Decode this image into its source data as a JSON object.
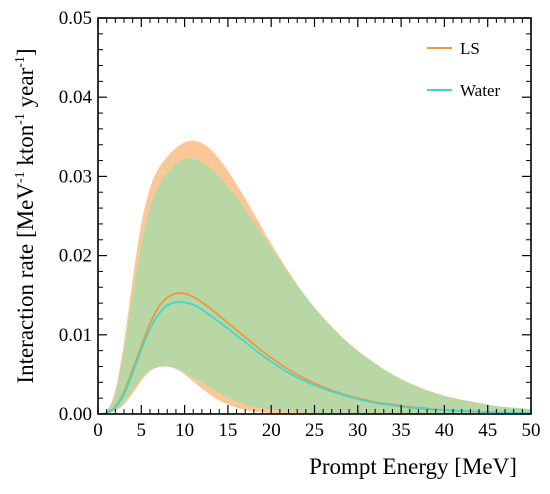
{
  "chart_data": {
    "type": "area",
    "title": "",
    "xlabel": "Prompt Energy [MeV]",
    "ylabel": {
      "prefix": "Interaction rate [MeV",
      "sup1": "-1",
      "mid": " kton",
      "sup2": "-1",
      "suffix": " year",
      "sup3": "-1",
      "close": "]"
    },
    "xlim": [
      0,
      50
    ],
    "ylim": [
      0,
      0.05
    ],
    "x_ticks": [
      0,
      5,
      10,
      15,
      20,
      25,
      30,
      35,
      40,
      45,
      50
    ],
    "x_tick_labels": [
      "0",
      "5",
      "10",
      "15",
      "20",
      "25",
      "30",
      "35",
      "40",
      "45",
      "50"
    ],
    "y_ticks": [
      0,
      0.01,
      0.02,
      0.03,
      0.04,
      0.05
    ],
    "y_tick_labels": [
      "0.00",
      "0.01",
      "0.02",
      "0.03",
      "0.04",
      "0.05"
    ],
    "grid": false,
    "legend_position": "top-right",
    "x": [
      0,
      1,
      2,
      3,
      4,
      5,
      6,
      7,
      8,
      9,
      10,
      11,
      12,
      13,
      14,
      15,
      16,
      17,
      18,
      19,
      20,
      22,
      24,
      26,
      28,
      30,
      32,
      34,
      36,
      38,
      40,
      42,
      44,
      46,
      48,
      50
    ],
    "series": [
      {
        "name": "LS",
        "color": "#f0963c",
        "band_color": "#f9c896",
        "values": [
          0,
          0.00015,
          0.0009,
          0.0028,
          0.0056,
          0.0086,
          0.0114,
          0.0135,
          0.0147,
          0.0152,
          0.0152,
          0.0148,
          0.0141,
          0.0133,
          0.0124,
          0.0115,
          0.0106,
          0.0097,
          0.0088,
          0.0079,
          0.0071,
          0.0056,
          0.0044,
          0.0034,
          0.0026,
          0.002,
          0.0015,
          0.0012,
          0.0009,
          0.0007,
          0.0005,
          0.0004,
          0.0003,
          0.0002,
          0.00015,
          0.0001
        ],
        "band_lower": [
          0,
          0.0001,
          0.0004,
          0.0012,
          0.0026,
          0.0042,
          0.0054,
          0.006,
          0.0062,
          0.0058,
          0.005,
          0.0041,
          0.0032,
          0.0024,
          0.0017,
          0.0012,
          0.0008,
          0.0005,
          0.0003,
          0.0002,
          0.0001,
          5e-05,
          0,
          0,
          0,
          0,
          0,
          0,
          0,
          0,
          0,
          0,
          0,
          0,
          0,
          0
        ],
        "band_upper": [
          0,
          0.0004,
          0.003,
          0.009,
          0.017,
          0.024,
          0.0285,
          0.031,
          0.0325,
          0.0336,
          0.0343,
          0.0345,
          0.0342,
          0.0334,
          0.0322,
          0.0307,
          0.029,
          0.0272,
          0.0253,
          0.0234,
          0.0215,
          0.018,
          0.0148,
          0.012,
          0.0097,
          0.0077,
          0.0061,
          0.0048,
          0.0037,
          0.0029,
          0.0022,
          0.0017,
          0.0013,
          0.001,
          0.0007,
          0.0005
        ]
      },
      {
        "name": "Water",
        "color": "#3dd9d0",
        "band_color": "#b9d7a4",
        "values": [
          0,
          0.00012,
          0.0008,
          0.0025,
          0.0052,
          0.0081,
          0.0107,
          0.0126,
          0.0137,
          0.0141,
          0.0141,
          0.0138,
          0.0132,
          0.0124,
          0.0116,
          0.0108,
          0.0099,
          0.0091,
          0.0082,
          0.0074,
          0.0066,
          0.0052,
          0.0041,
          0.0032,
          0.0025,
          0.0019,
          0.0014,
          0.0011,
          0.0008,
          0.0006,
          0.0005,
          0.0004,
          0.0003,
          0.0002,
          0.00015,
          0.0001
        ],
        "band_lower": [
          0,
          0.0001,
          0.0005,
          0.0015,
          0.003,
          0.0045,
          0.0055,
          0.0059,
          0.006,
          0.0057,
          0.0052,
          0.0046,
          0.004,
          0.0033,
          0.0027,
          0.0021,
          0.0016,
          0.0012,
          0.0009,
          0.0007,
          0.0005,
          0.0003,
          0.0002,
          0.0001,
          5e-05,
          0,
          0,
          0,
          0,
          0,
          0,
          0,
          0,
          0,
          0,
          0
        ],
        "band_upper": [
          0,
          0.0003,
          0.0025,
          0.008,
          0.015,
          0.0215,
          0.026,
          0.0288,
          0.0305,
          0.0316,
          0.0322,
          0.0322,
          0.0318,
          0.031,
          0.03,
          0.0287,
          0.0273,
          0.0258,
          0.0242,
          0.0226,
          0.021,
          0.0178,
          0.0148,
          0.0122,
          0.0099,
          0.008,
          0.0064,
          0.005,
          0.0039,
          0.003,
          0.0023,
          0.0018,
          0.0014,
          0.001,
          0.0008,
          0.0006
        ]
      }
    ]
  }
}
